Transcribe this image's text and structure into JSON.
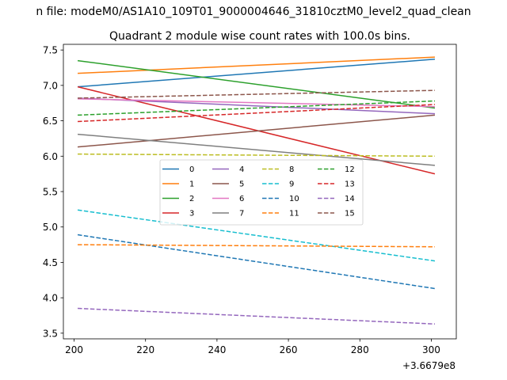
{
  "chart_data": {
    "type": "line",
    "suptitle": "n file: modeM0/AS1A10_109T01_9000004646_31810cztM0_level2_quad_clean",
    "title": "Quadrant 2 module wise count rates with 100.0s bins.",
    "xlabel": "",
    "ylabel": "",
    "x_offset_label": "+3.6679e8",
    "xlim": [
      197,
      307
    ],
    "ylim": [
      3.42,
      7.58
    ],
    "xticks": [
      200,
      220,
      240,
      260,
      280,
      300
    ],
    "yticks": [
      3.5,
      4.0,
      4.5,
      5.0,
      5.5,
      6.0,
      6.5,
      7.0,
      7.5
    ],
    "x": [
      201,
      301
    ],
    "grid": false,
    "legend_position": "center",
    "legend_columns": 4,
    "series": [
      {
        "name": "0",
        "values": [
          6.98,
          7.37
        ],
        "color": "#1f77b4",
        "dash": false
      },
      {
        "name": "1",
        "values": [
          7.17,
          7.4
        ],
        "color": "#ff7f0e",
        "dash": false
      },
      {
        "name": "2",
        "values": [
          7.35,
          6.68
        ],
        "color": "#2ca02c",
        "dash": false
      },
      {
        "name": "3",
        "values": [
          6.98,
          5.75
        ],
        "color": "#d62728",
        "dash": false
      },
      {
        "name": "4",
        "values": [
          6.82,
          6.6
        ],
        "color": "#9467bd",
        "dash": false
      },
      {
        "name": "5",
        "values": [
          6.13,
          6.58
        ],
        "color": "#8c564b",
        "dash": false
      },
      {
        "name": "6",
        "values": [
          6.81,
          6.7
        ],
        "color": "#e377c2",
        "dash": false
      },
      {
        "name": "7",
        "values": [
          6.31,
          5.87
        ],
        "color": "#7f7f7f",
        "dash": false
      },
      {
        "name": "8",
        "values": [
          6.03,
          6.0
        ],
        "color": "#bcbd22",
        "dash": true
      },
      {
        "name": "9",
        "values": [
          5.24,
          4.52
        ],
        "color": "#17becf",
        "dash": true
      },
      {
        "name": "10",
        "values": [
          4.89,
          4.13
        ],
        "color": "#1f77b4",
        "dash": true
      },
      {
        "name": "11",
        "values": [
          4.75,
          4.72
        ],
        "color": "#ff7f0e",
        "dash": true
      },
      {
        "name": "12",
        "values": [
          6.58,
          6.78
        ],
        "color": "#2ca02c",
        "dash": true
      },
      {
        "name": "13",
        "values": [
          6.49,
          6.73
        ],
        "color": "#d62728",
        "dash": true
      },
      {
        "name": "14",
        "values": [
          3.85,
          3.63
        ],
        "color": "#9467bd",
        "dash": true
      },
      {
        "name": "15",
        "values": [
          6.82,
          6.93
        ],
        "color": "#8c564b",
        "dash": true
      }
    ]
  }
}
